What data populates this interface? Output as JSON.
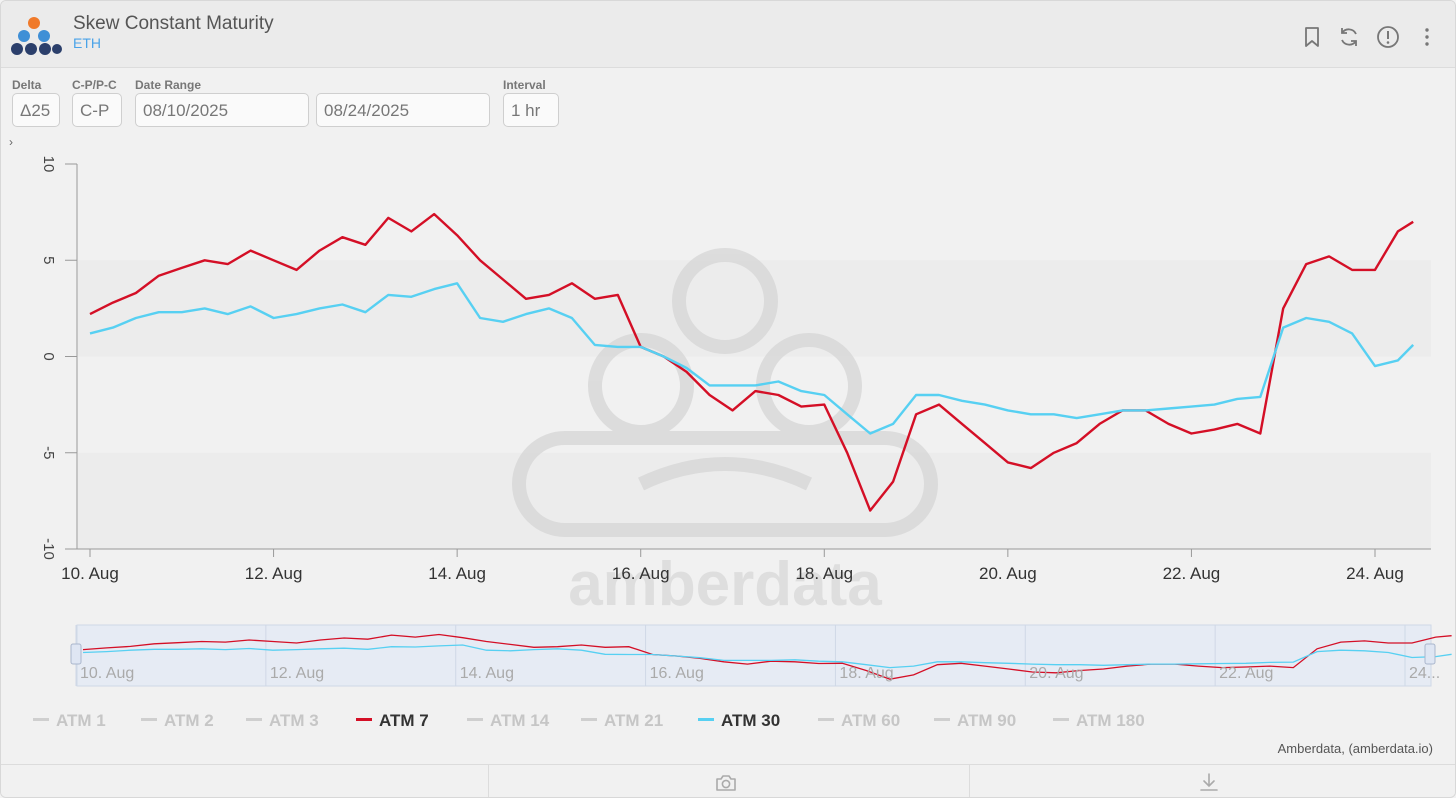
{
  "header": {
    "title": "Skew Constant Maturity",
    "subtitle": "ETH"
  },
  "controls": {
    "delta": {
      "label": "Delta",
      "value": "Δ25"
    },
    "cp": {
      "label": "C-P/P-C",
      "value": "C-P"
    },
    "date_range": {
      "label": "Date Range",
      "start": "08/10/2025",
      "end": "08/24/2025"
    },
    "interval": {
      "label": "Interval",
      "value": "1 hr"
    }
  },
  "watermark": "amberdata",
  "legend": [
    {
      "label": "ATM 1",
      "active": false,
      "color": "#cfcfcf"
    },
    {
      "label": "ATM 2",
      "active": false,
      "color": "#cfcfcf"
    },
    {
      "label": "ATM 3",
      "active": false,
      "color": "#cfcfcf"
    },
    {
      "label": "ATM 7",
      "active": true,
      "color": "#d40f26"
    },
    {
      "label": "ATM 14",
      "active": false,
      "color": "#cfcfcf"
    },
    {
      "label": "ATM 21",
      "active": false,
      "color": "#cfcfcf"
    },
    {
      "label": "ATM 30",
      "active": true,
      "color": "#57d0f2"
    },
    {
      "label": "ATM 60",
      "active": false,
      "color": "#cfcfcf"
    },
    {
      "label": "ATM 90",
      "active": false,
      "color": "#cfcfcf"
    },
    {
      "label": "ATM 180",
      "active": false,
      "color": "#cfcfcf"
    }
  ],
  "credit": "Amberdata, (amberdata.io)",
  "colors": {
    "atm7": "#d40f26",
    "atm30": "#57d0f2",
    "accent": "#4aa3e8"
  },
  "chart_data": {
    "type": "line",
    "x_unit": "date",
    "ylim": [
      -10,
      10
    ],
    "yticks": [
      "10",
      "5",
      "0",
      "-5",
      "-10"
    ],
    "ytick_values": [
      10,
      5,
      0,
      -5,
      -10
    ],
    "xticks": [
      "10. Aug",
      "12. Aug",
      "14. Aug",
      "16. Aug",
      "18. Aug",
      "20. Aug",
      "22. Aug",
      "24. Aug"
    ],
    "xtick_values": [
      "2025-08-10",
      "2025-08-12",
      "2025-08-14",
      "2025-08-16",
      "2025-08-18",
      "2025-08-20",
      "2025-08-22",
      "2025-08-24"
    ],
    "navigator_xticks": [
      "10. Aug",
      "12. Aug",
      "14. Aug",
      "16. Aug",
      "18. Aug",
      "20. Aug",
      "22. Aug",
      "24..."
    ],
    "x": [
      "2025-08-10 00:00",
      "2025-08-10 06:00",
      "2025-08-10 12:00",
      "2025-08-10 18:00",
      "2025-08-11 00:00",
      "2025-08-11 06:00",
      "2025-08-11 12:00",
      "2025-08-11 18:00",
      "2025-08-12 00:00",
      "2025-08-12 06:00",
      "2025-08-12 12:00",
      "2025-08-12 18:00",
      "2025-08-13 00:00",
      "2025-08-13 06:00",
      "2025-08-13 12:00",
      "2025-08-13 18:00",
      "2025-08-14 00:00",
      "2025-08-14 06:00",
      "2025-08-14 12:00",
      "2025-08-14 18:00",
      "2025-08-15 00:00",
      "2025-08-15 06:00",
      "2025-08-15 12:00",
      "2025-08-15 18:00",
      "2025-08-16 00:00",
      "2025-08-16 06:00",
      "2025-08-16 12:00",
      "2025-08-16 18:00",
      "2025-08-17 00:00",
      "2025-08-17 06:00",
      "2025-08-17 12:00",
      "2025-08-17 18:00",
      "2025-08-18 00:00",
      "2025-08-18 06:00",
      "2025-08-18 12:00",
      "2025-08-18 18:00",
      "2025-08-19 00:00",
      "2025-08-19 06:00",
      "2025-08-19 12:00",
      "2025-08-19 18:00",
      "2025-08-20 00:00",
      "2025-08-20 06:00",
      "2025-08-20 12:00",
      "2025-08-20 18:00",
      "2025-08-21 00:00",
      "2025-08-21 06:00",
      "2025-08-21 12:00",
      "2025-08-21 18:00",
      "2025-08-22 00:00",
      "2025-08-22 06:00",
      "2025-08-22 12:00",
      "2025-08-22 18:00",
      "2025-08-23 00:00",
      "2025-08-23 06:00",
      "2025-08-23 12:00",
      "2025-08-23 18:00",
      "2025-08-24 00:00",
      "2025-08-24 06:00",
      "2025-08-24 10:00"
    ],
    "series": [
      {
        "name": "ATM 7",
        "color": "#d40f26",
        "values": [
          2.2,
          2.8,
          3.3,
          4.2,
          4.6,
          5.0,
          4.8,
          5.5,
          5.0,
          4.5,
          5.5,
          6.2,
          5.8,
          7.2,
          6.5,
          7.4,
          6.3,
          5.0,
          4.0,
          3.0,
          3.2,
          3.8,
          3.0,
          3.2,
          0.5,
          0.0,
          -0.8,
          -2.0,
          -2.8,
          -1.8,
          -2.0,
          -2.6,
          -2.5,
          -5.0,
          -8.0,
          -6.5,
          -3.0,
          -2.5,
          -3.5,
          -4.5,
          -5.5,
          -5.8,
          -5.0,
          -4.5,
          -3.5,
          -2.8,
          -2.8,
          -3.5,
          -4.0,
          -3.8,
          -3.5,
          -4.0,
          2.5,
          4.8,
          5.2,
          4.5,
          4.5,
          6.5,
          7.0
        ]
      },
      {
        "name": "ATM 30",
        "color": "#57d0f2",
        "values": [
          1.2,
          1.5,
          2.0,
          2.3,
          2.3,
          2.5,
          2.2,
          2.6,
          2.0,
          2.2,
          2.5,
          2.7,
          2.3,
          3.2,
          3.1,
          3.5,
          3.8,
          2.0,
          1.8,
          2.2,
          2.5,
          2.0,
          0.6,
          0.5,
          0.5,
          0.0,
          -0.6,
          -1.5,
          -1.5,
          -1.5,
          -1.3,
          -1.8,
          -2.0,
          -3.0,
          -4.0,
          -3.5,
          -2.0,
          -2.0,
          -2.3,
          -2.5,
          -2.8,
          -3.0,
          -3.0,
          -3.2,
          -3.0,
          -2.8,
          -2.8,
          -2.7,
          -2.6,
          -2.5,
          -2.2,
          -2.1,
          1.5,
          2.0,
          1.8,
          1.2,
          -0.5,
          -0.2,
          0.6
        ]
      }
    ]
  }
}
